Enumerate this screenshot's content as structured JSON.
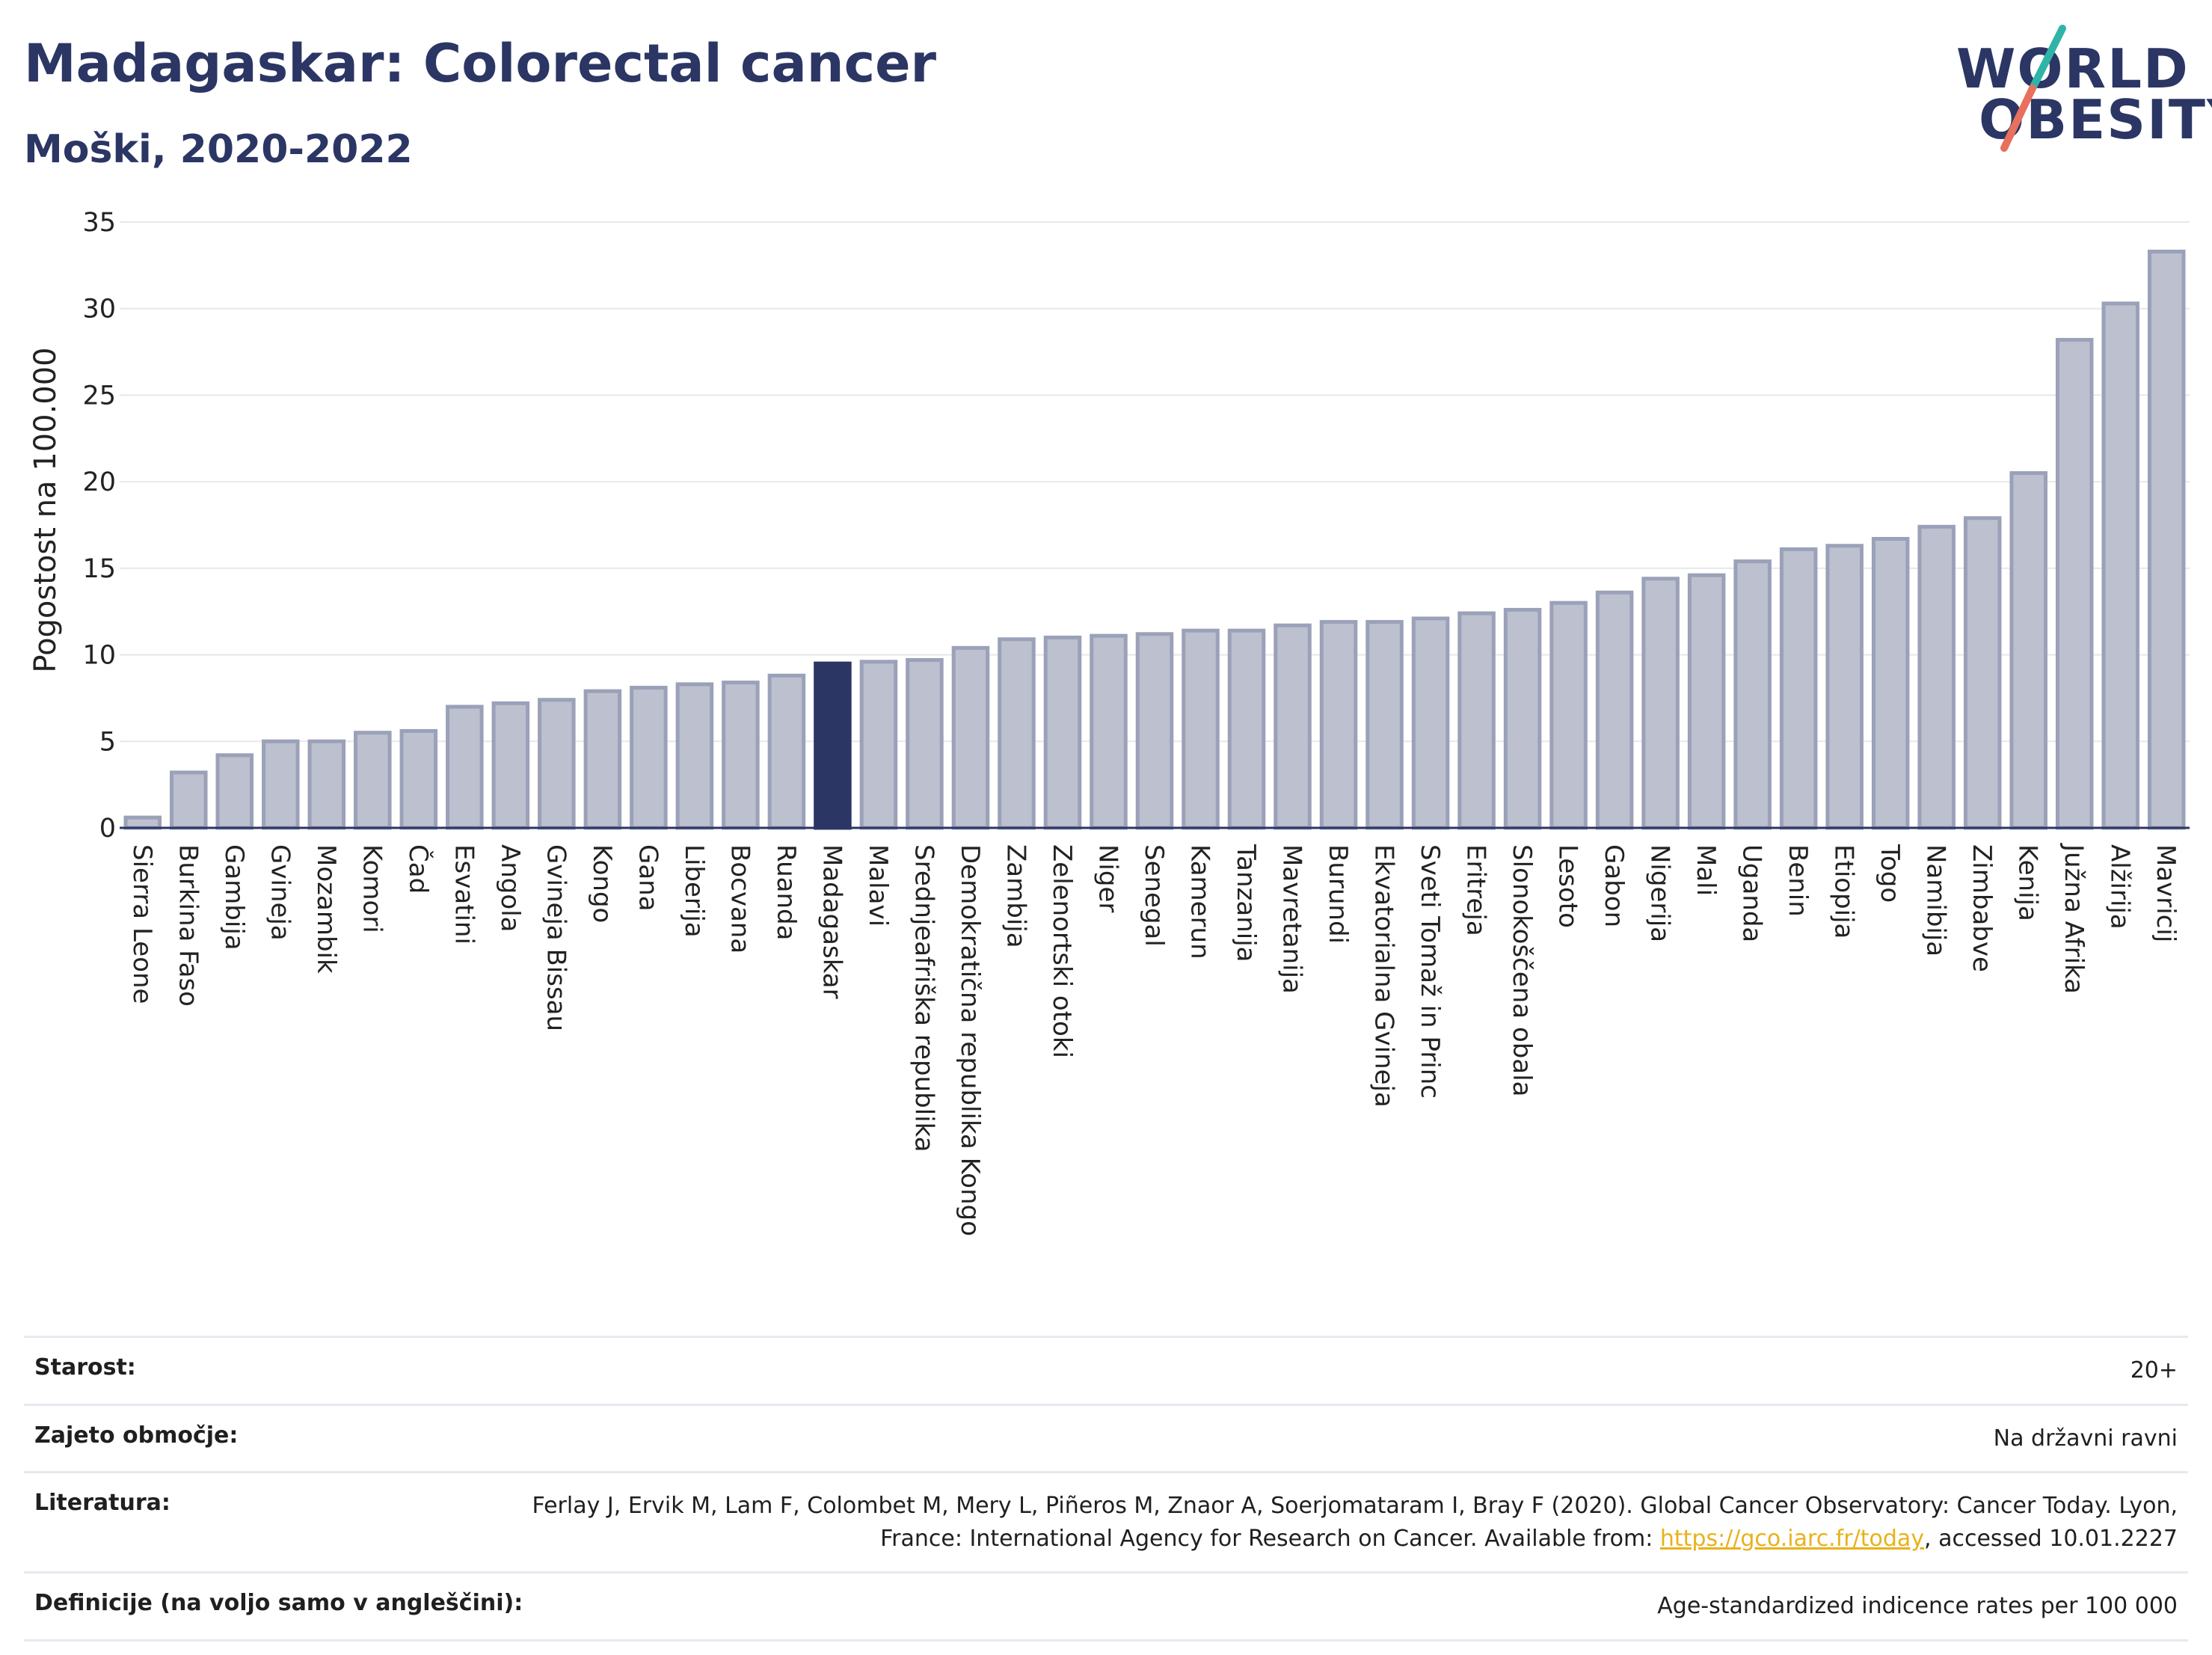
{
  "header": {
    "title": "Madagaskar: Colorectal cancer",
    "subtitle": "Moški, 2020-2022"
  },
  "logo": {
    "line1": "WORLD",
    "line2": "OBESITY"
  },
  "colors": {
    "bar": "#bcc0cf",
    "bar_border": "#9aa1b8",
    "highlight": "#2b3664",
    "title": "#2b3664",
    "link": "#e8b21a"
  },
  "chart_data": {
    "type": "bar",
    "ylabel": "Pogostost na 100.000",
    "ylim": [
      0,
      35
    ],
    "yticks": [
      0,
      5,
      10,
      15,
      20,
      25,
      30,
      35
    ],
    "grid": true,
    "highlight": "Madagaskar",
    "categories": [
      "Sierra Leone",
      "Burkina Faso",
      "Gambija",
      "Gvineja",
      "Mozambik",
      "Komori",
      "Čad",
      "Esvatini",
      "Angola",
      "Gvineja Bissau",
      "Kongo",
      "Gana",
      "Liberija",
      "Bocvana",
      "Ruanda",
      "Madagaskar",
      "Malavi",
      "Srednjeafriška republika",
      "Demokratična republika Kongo",
      "Zambija",
      "Zelenortski otoki",
      "Niger",
      "Senegal",
      "Kamerun",
      "Tanzanija",
      "Mavretanija",
      "Burundi",
      "Ekvatorialna Gvineja",
      "Sveti Tomaž in Princ",
      "Eritreja",
      "Slonokoščena obala",
      "Lesoto",
      "Gabon",
      "Nigerija",
      "Mali",
      "Uganda",
      "Benin",
      "Etiopija",
      "Togo",
      "Namibija",
      "Zimbabve",
      "Kenija",
      "Južna Afrika",
      "Alžirija",
      "Mavricij"
    ],
    "values": [
      0.6,
      3.2,
      4.2,
      5.0,
      5.0,
      5.5,
      5.6,
      7.0,
      7.2,
      7.4,
      7.9,
      8.1,
      8.3,
      8.4,
      8.8,
      9.5,
      9.6,
      9.7,
      10.4,
      10.9,
      11.0,
      11.1,
      11.2,
      11.4,
      11.4,
      11.7,
      11.9,
      11.9,
      12.1,
      12.4,
      12.6,
      13.0,
      13.6,
      14.4,
      14.6,
      15.4,
      16.1,
      16.3,
      16.7,
      17.4,
      17.9,
      20.5,
      28.2,
      30.3,
      33.3
    ]
  },
  "info": {
    "age_label": "Starost:",
    "age_value": "20+",
    "coverage_label": "Zajeto območje:",
    "coverage_value": "Na državni ravni",
    "lit_label": "Literatura:",
    "lit_text_1": "Ferlay J, Ervik M, Lam F, Colombet M, Mery L, Piñeros M, Znaor A, Soerjomataram I, Bray F (2020). Global Cancer Observatory: Cancer Today. Lyon, France: International Agency for Research on Cancer. Available from: ",
    "lit_link": "https://gco.iarc.fr/today",
    "lit_text_2": ", accessed 10.01.2227",
    "def_label": "Definicije (na voljo samo v angleščini):",
    "def_value": "Age-standardized indicence rates per 100 000"
  }
}
